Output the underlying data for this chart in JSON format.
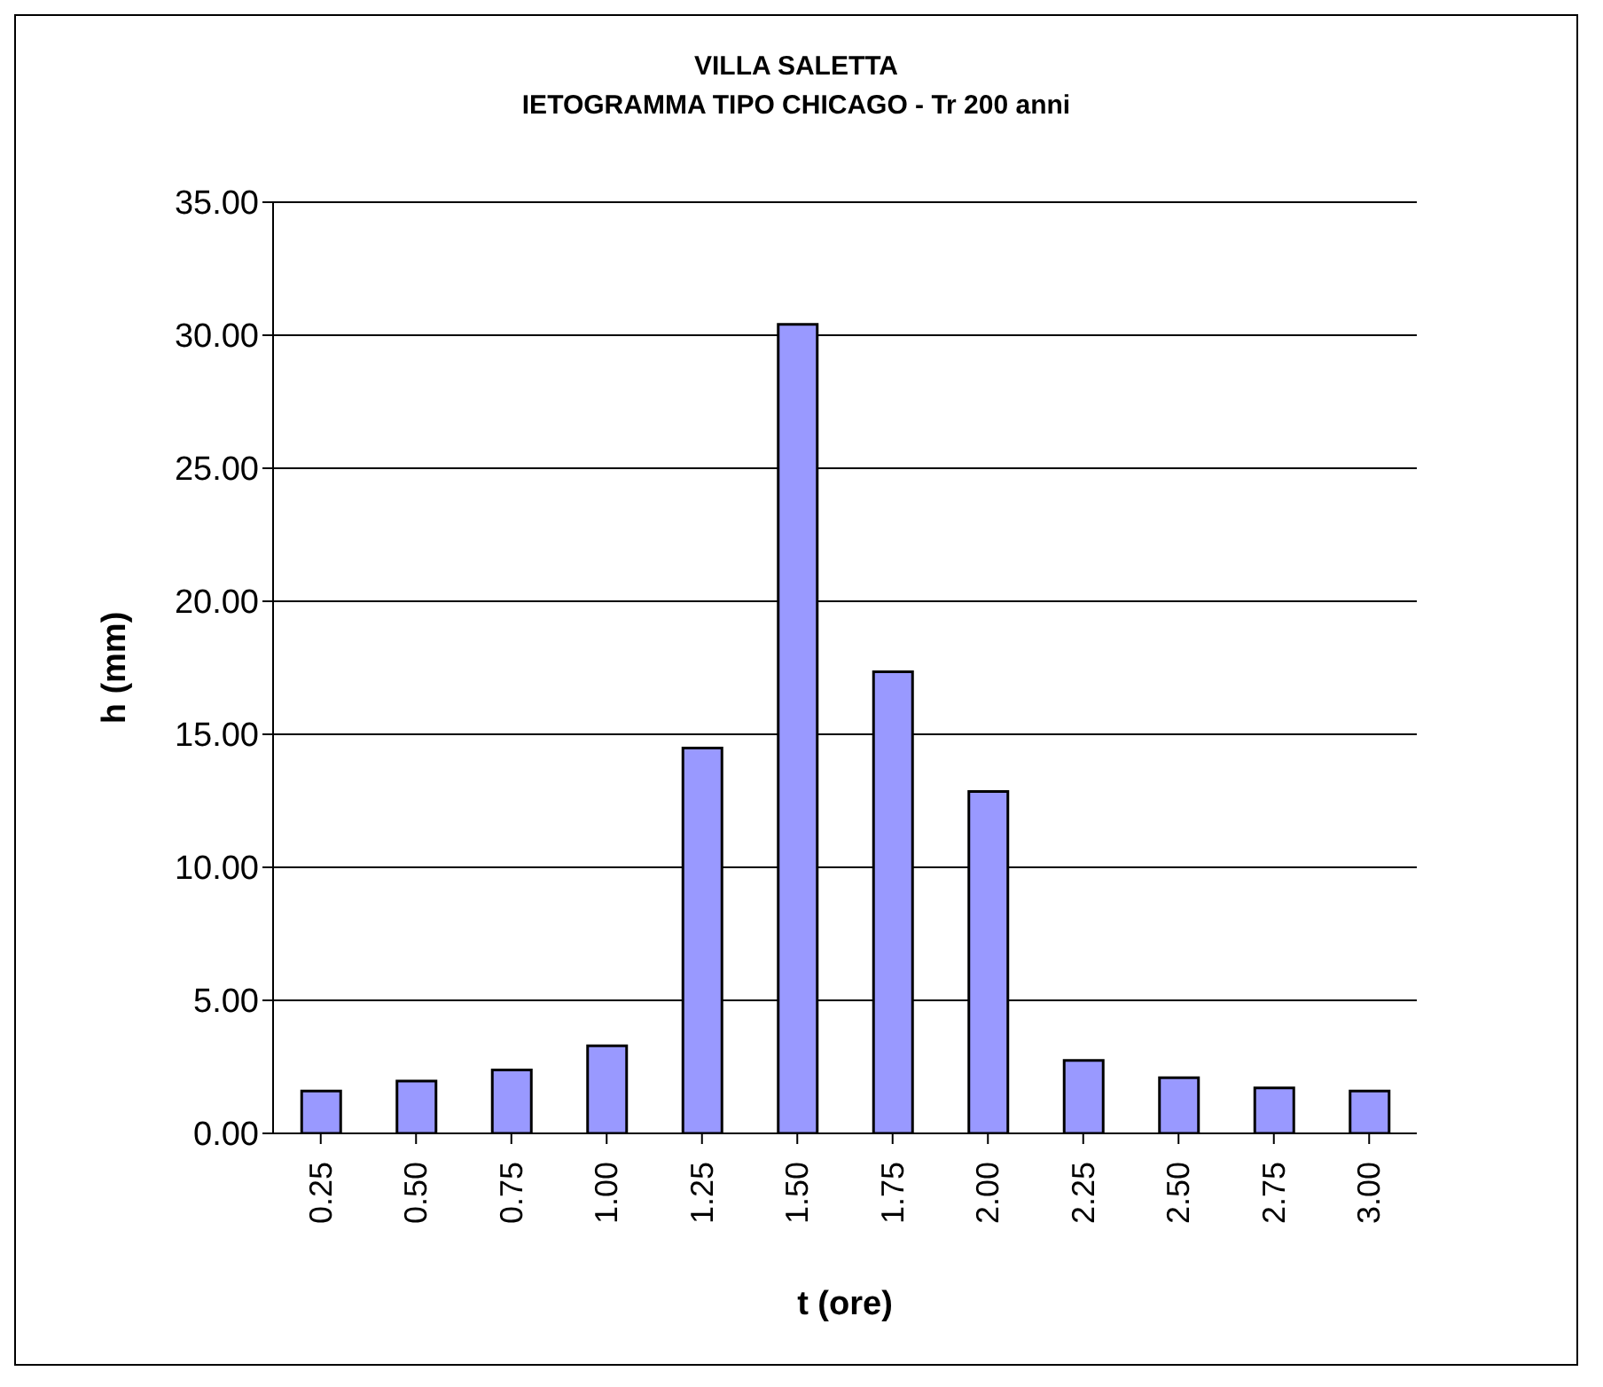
{
  "chart_data": {
    "type": "bar",
    "title": "VILLA SALETTA",
    "subtitle": "IETOGRAMMA TIPO CHICAGO - Tr 200 anni",
    "xlabel": "t (ore)",
    "ylabel": "h (mm)",
    "categories": [
      "0.25",
      "0.50",
      "0.75",
      "1.00",
      "1.25",
      "1.50",
      "1.75",
      "2.00",
      "2.25",
      "2.50",
      "2.75",
      "3.00"
    ],
    "values": [
      1.59,
      1.97,
      2.38,
      3.29,
      14.48,
      30.41,
      17.35,
      12.85,
      2.74,
      2.09,
      1.71,
      1.59
    ],
    "color": "#9999ff",
    "ylim": [
      0,
      35
    ],
    "yticks": [
      {
        "value": 0,
        "label": "0.00"
      },
      {
        "value": 5,
        "label": "5.00"
      },
      {
        "value": 10,
        "label": "10.00"
      },
      {
        "value": 15,
        "label": "15.00"
      },
      {
        "value": 20,
        "label": "20.00"
      },
      {
        "value": 25,
        "label": "25.00"
      },
      {
        "value": 30,
        "label": "30.00"
      },
      {
        "value": 35,
        "label": "35.00"
      }
    ],
    "grid": "y",
    "legend": false
  }
}
